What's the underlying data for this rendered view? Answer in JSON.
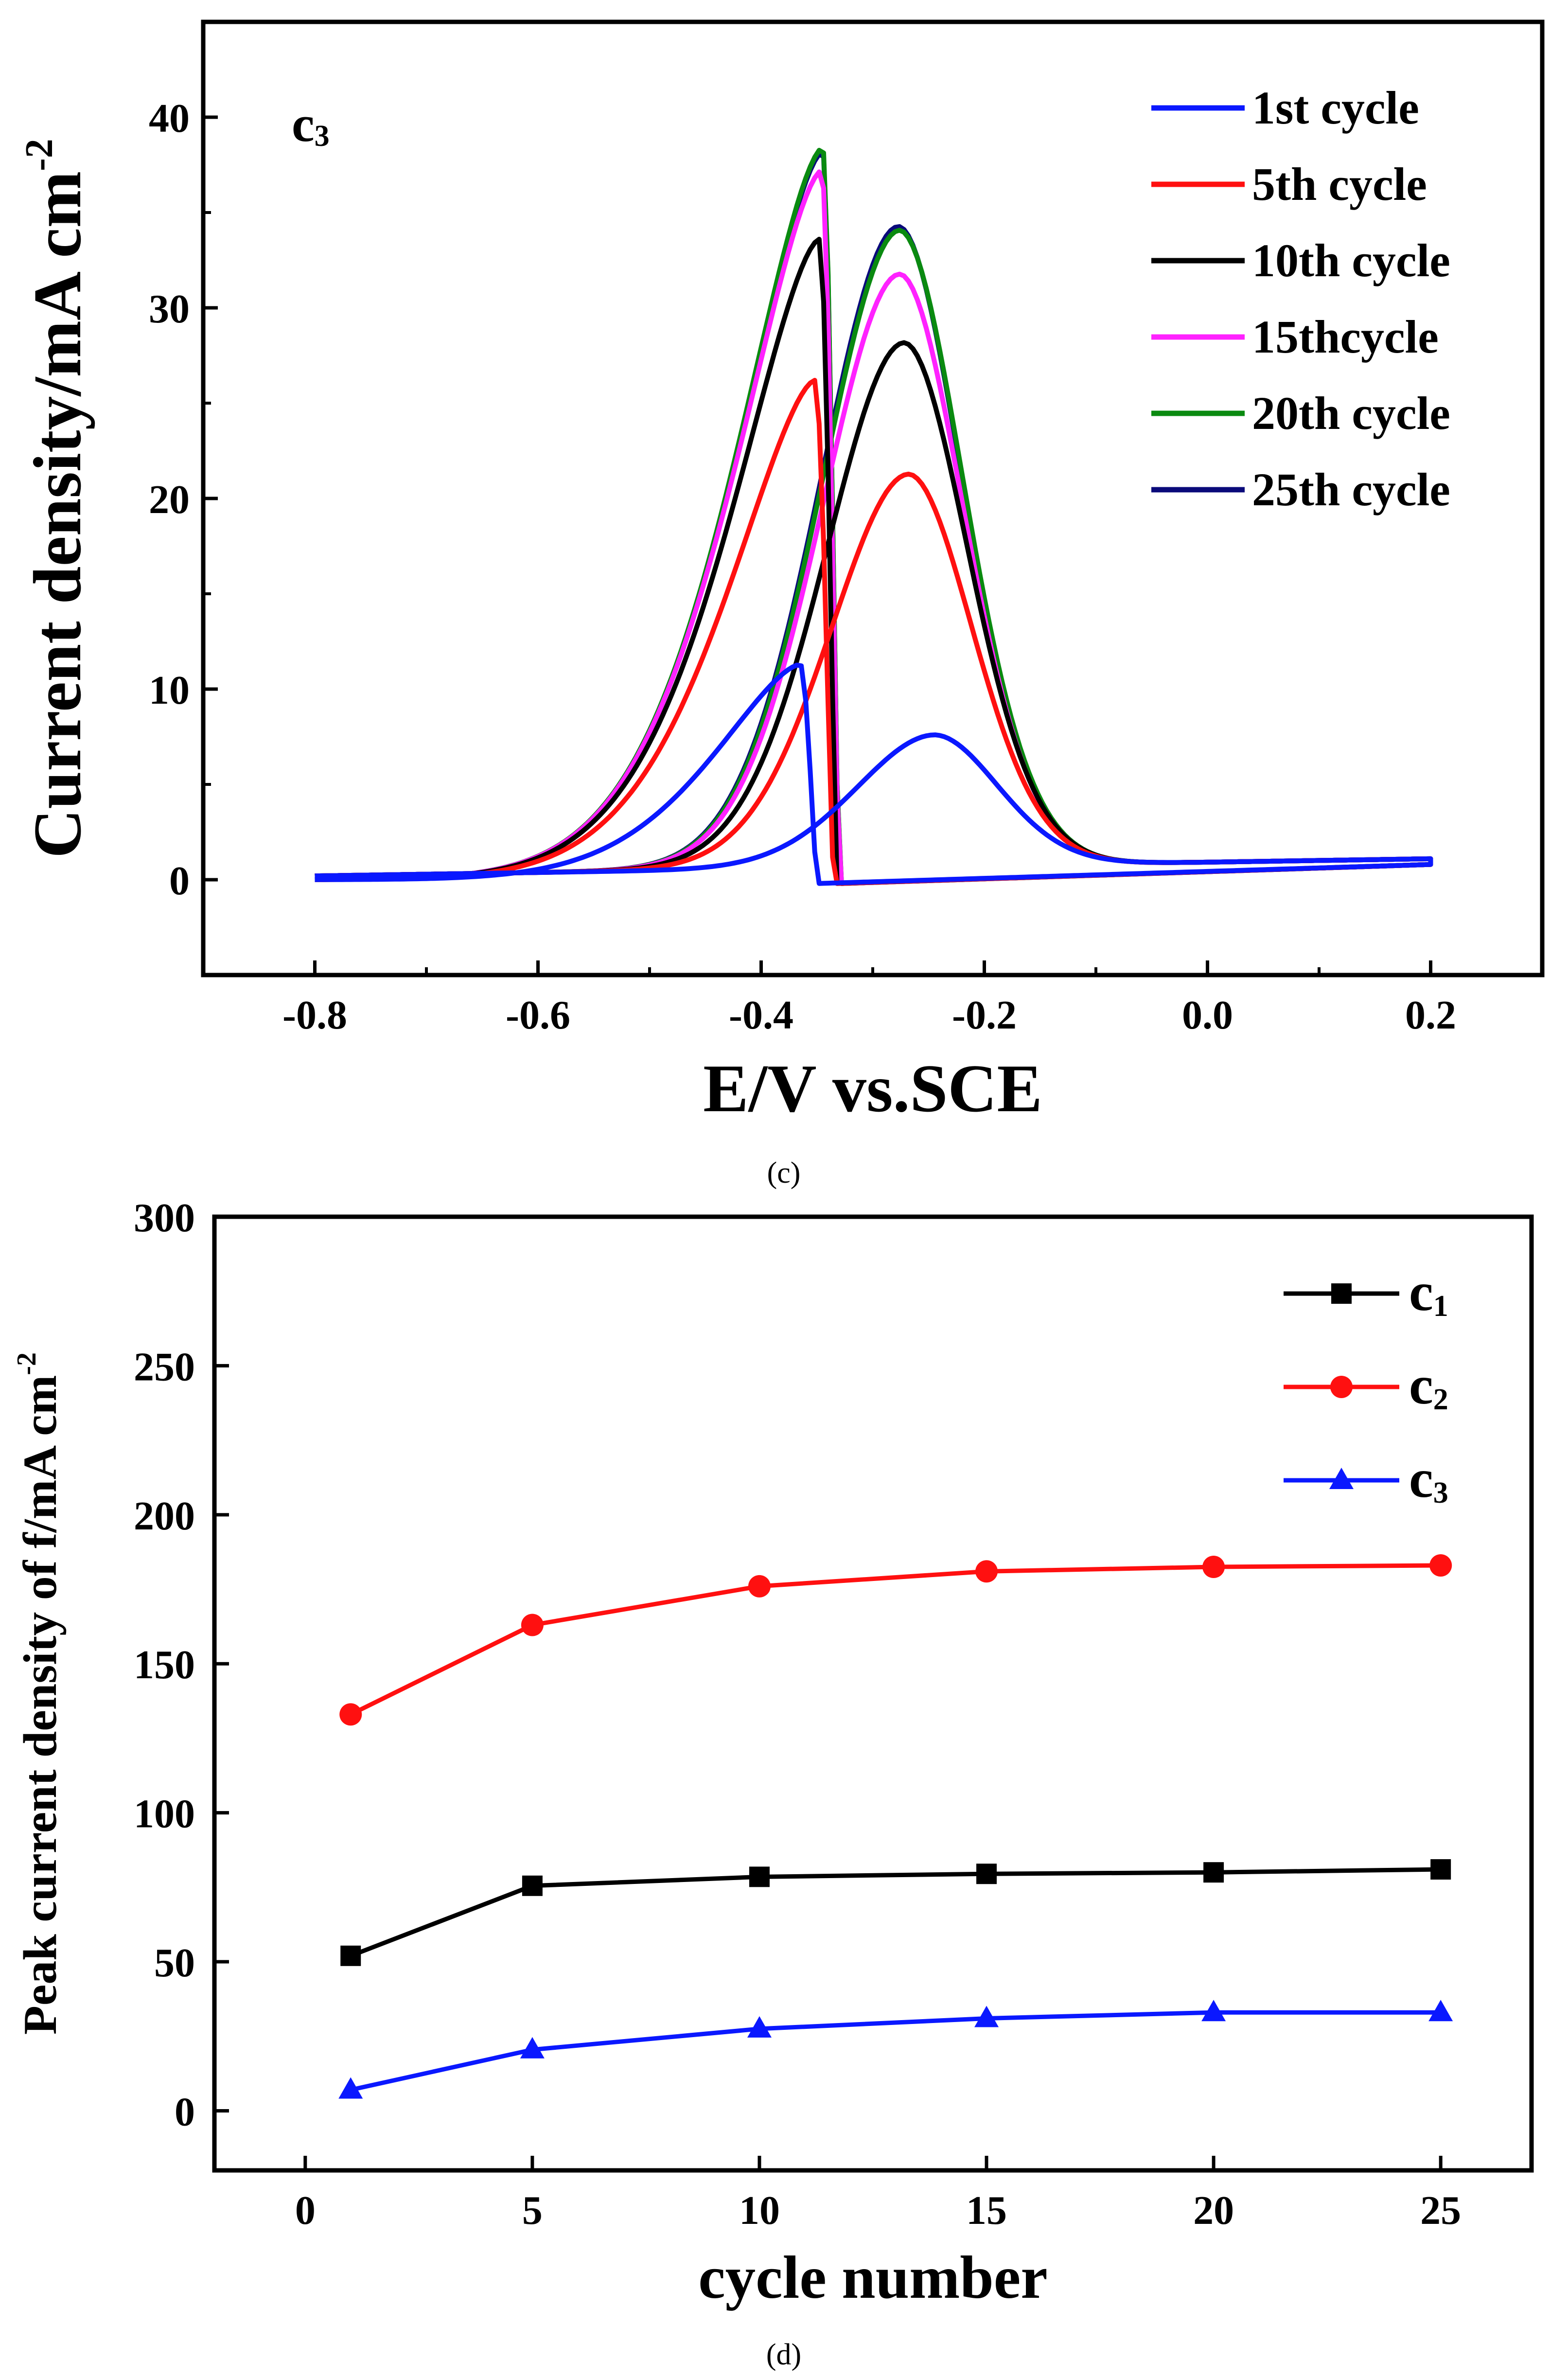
{
  "panels": {
    "c": {
      "caption": "(c)",
      "panel_label": "c",
      "panel_label_sub": "3"
    },
    "d": {
      "caption": "(d)"
    }
  },
  "chart_data": [
    {
      "id": "c",
      "type": "line",
      "title": "",
      "xlabel": "E/V vs.SCE",
      "ylabel": "Current density/mA cm",
      "ylabel_sup": "-2",
      "xlim": [
        -0.9,
        0.3
      ],
      "ylim": [
        -5,
        45
      ],
      "xticks": [
        -0.8,
        -0.6,
        -0.4,
        -0.2,
        0.0,
        0.2
      ],
      "xtick_labels": [
        "-0.8",
        "-0.6",
        "-0.4",
        "-0.2",
        "0.0",
        "0.2"
      ],
      "yticks": [
        0,
        10,
        20,
        30,
        40
      ],
      "ytick_labels": [
        "0",
        "10",
        "20",
        "30",
        "40"
      ],
      "legend_position": "top-right",
      "series": [
        {
          "name": "1st cycle",
          "color": "#0a18ff",
          "fwd_peak": [
            -0.365,
            11.3
          ],
          "rev_peak": [
            -0.245,
            6.9
          ],
          "cutoff": -0.35
        },
        {
          "name": "5th cycle",
          "color": "#ff1010",
          "fwd_peak": [
            -0.352,
            26.2
          ],
          "rev_peak": [
            -0.268,
            20.6
          ],
          "cutoff": -0.335
        },
        {
          "name": "10th cycle",
          "color": "#000000",
          "fwd_peak": [
            -0.348,
            33.6
          ],
          "rev_peak": [
            -0.272,
            27.5
          ],
          "cutoff": -0.332
        },
        {
          "name": "15thcycle",
          "color": "#ff22ff",
          "fwd_peak": [
            -0.346,
            37.2
          ],
          "rev_peak": [
            -0.276,
            31.1
          ],
          "cutoff": -0.33
        },
        {
          "name": "20th cycle",
          "color": "#0a8a10",
          "fwd_peak": [
            -0.345,
            38.4
          ],
          "rev_peak": [
            -0.276,
            33.4
          ],
          "cutoff": -0.33
        },
        {
          "name": "25th cycle",
          "color": "#0a0a7a",
          "fwd_peak": [
            -0.345,
            38.2
          ],
          "rev_peak": [
            -0.277,
            33.6
          ],
          "cutoff": -0.33
        }
      ]
    },
    {
      "id": "d",
      "type": "line",
      "title": "",
      "xlabel": "cycle number",
      "ylabel": "Peak current density of f/mA cm",
      "ylabel_sup": "-2",
      "xlim": [
        -2,
        27
      ],
      "ylim": [
        -20,
        300
      ],
      "xticks": [
        0,
        5,
        10,
        15,
        20,
        25
      ],
      "xtick_labels": [
        "0",
        "5",
        "10",
        "15",
        "20",
        "25"
      ],
      "yticks": [
        0,
        50,
        100,
        150,
        200,
        250,
        300
      ],
      "ytick_labels": [
        "0",
        "50",
        "100",
        "150",
        "200",
        "250",
        "300"
      ],
      "legend_position": "top-right",
      "x": [
        1,
        5,
        10,
        15,
        20,
        25
      ],
      "series": [
        {
          "name": "c",
          "sub": "1",
          "color": "#000000",
          "marker": "square",
          "values": [
            52,
            75.5,
            78.5,
            79.5,
            80,
            81
          ]
        },
        {
          "name": "c",
          "sub": "2",
          "color": "#ff1010",
          "marker": "circle",
          "values": [
            133,
            163,
            176,
            181,
            182.5,
            183
          ]
        },
        {
          "name": "c",
          "sub": "3",
          "color": "#0a18ff",
          "marker": "triangle",
          "values": [
            7,
            20.5,
            27.5,
            31,
            33,
            33
          ]
        }
      ]
    }
  ]
}
